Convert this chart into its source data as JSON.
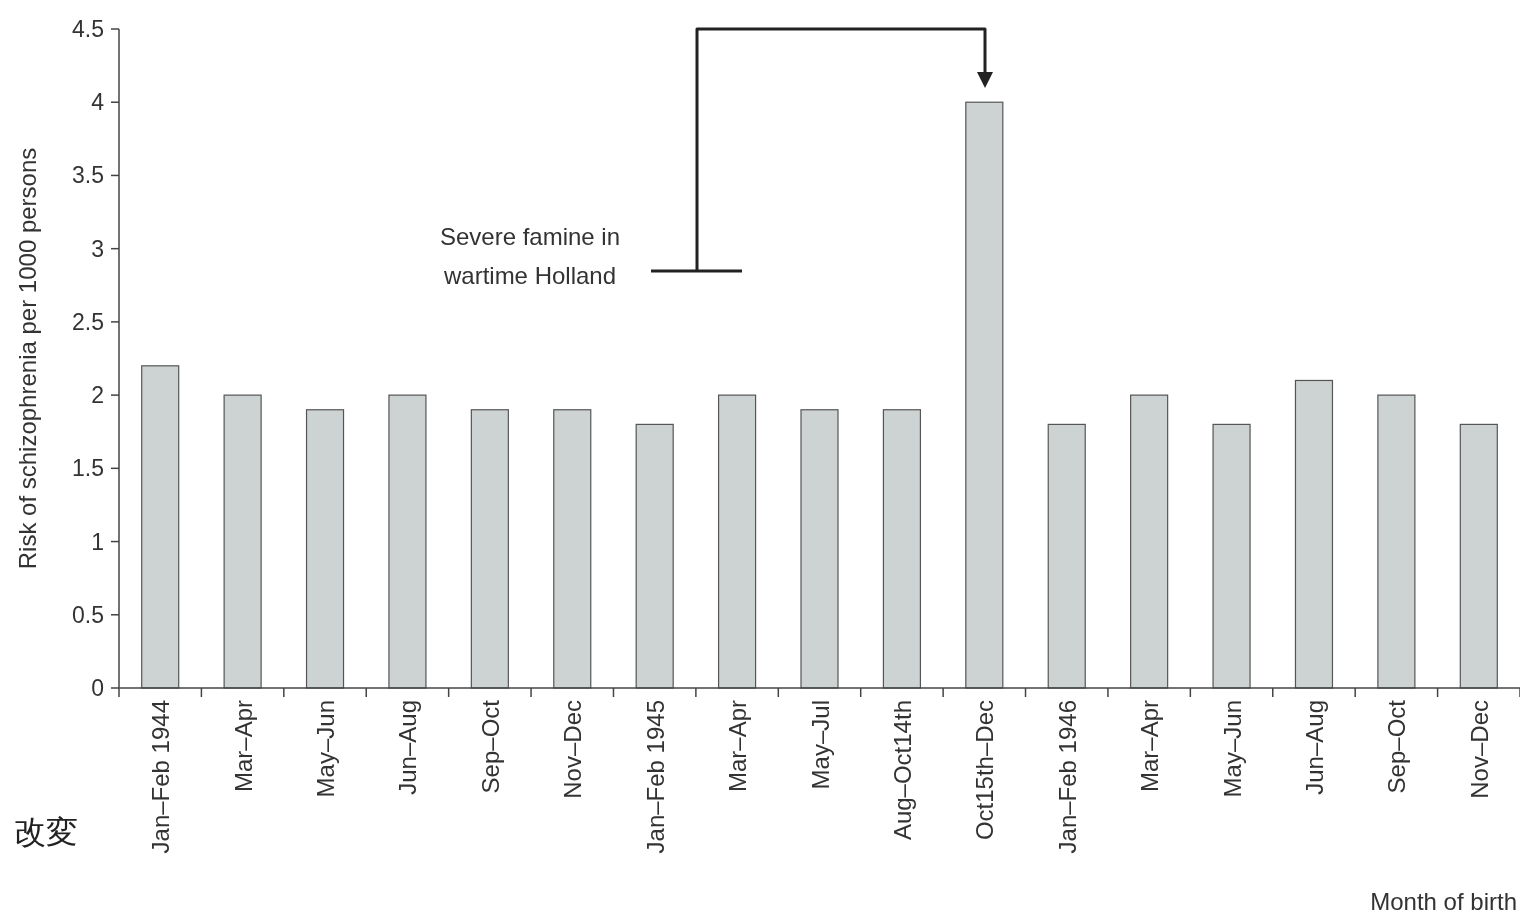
{
  "chart_data": {
    "type": "bar",
    "ylabel": "Risk of schizophrenia per 1000 persons",
    "xlabel": "Month of birth",
    "categories": [
      "Jan–Feb 1944",
      "Mar–Apr",
      "May–Jun",
      "Jun–Aug",
      "Sep–Oct",
      "Nov–Dec",
      "Jan–Feb 1945",
      "Mar–Apr",
      "May–Jul",
      "Aug–Oct14th",
      "Oct15th–Dec",
      "Jan–Feb 1946",
      "Mar–Apr",
      "May–Jun",
      "Jun–Aug",
      "Sep–Oct",
      "Nov–Dec"
    ],
    "values": [
      2.2,
      2.0,
      1.9,
      2.0,
      1.9,
      1.9,
      1.8,
      2.0,
      1.9,
      1.9,
      4.0,
      1.8,
      2.0,
      1.8,
      2.1,
      2.0,
      1.8
    ],
    "color": "#cdd3d3",
    "ylim": [
      0,
      4.5
    ],
    "yticks": [
      0,
      0.5,
      1,
      1.5,
      2,
      2.5,
      3,
      3.5,
      4,
      4.5
    ],
    "grid": false,
    "annotations": [
      "Severe famine in\nwartime Holland",
      "改変"
    ]
  }
}
